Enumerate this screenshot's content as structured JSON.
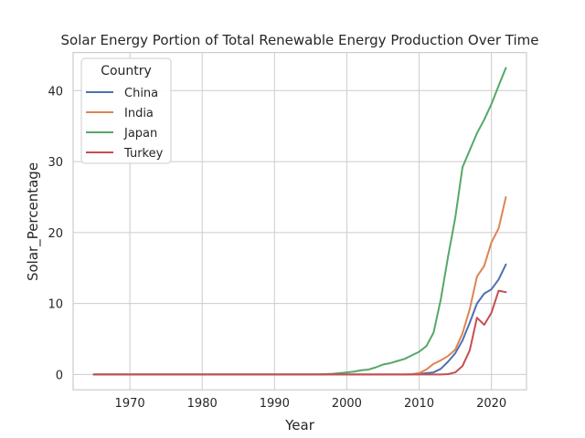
{
  "chart_data": {
    "type": "line",
    "title": "Solar Energy Portion of Total Renewable Energy Production Over Time",
    "xlabel": "Year",
    "ylabel": "Solar_Percentage",
    "xlim": [
      1962.15,
      2024.85
    ],
    "ylim": [
      -2.16,
      45.36
    ],
    "xticks": [
      1970,
      1980,
      1990,
      2000,
      2010,
      2020
    ],
    "yticks": [
      0,
      10,
      20,
      30,
      40
    ],
    "grid": true,
    "legend": {
      "title": "Country",
      "placement": "top-left"
    },
    "series": [
      {
        "name": "China",
        "color": "#4c72b0",
        "points": [
          [
            1965,
            0
          ],
          [
            1970,
            0
          ],
          [
            1980,
            0
          ],
          [
            1990,
            0
          ],
          [
            2000,
            0
          ],
          [
            2005,
            0
          ],
          [
            2008,
            0
          ],
          [
            2010,
            0.05
          ],
          [
            2011,
            0.2
          ],
          [
            2012,
            0.3
          ],
          [
            2013,
            0.8
          ],
          [
            2014,
            1.8
          ],
          [
            2015,
            3.0
          ],
          [
            2016,
            4.8
          ],
          [
            2017,
            7.3
          ],
          [
            2018,
            10.0
          ],
          [
            2019,
            11.4
          ],
          [
            2020,
            12.0
          ],
          [
            2021,
            13.4
          ],
          [
            2022,
            15.5
          ]
        ]
      },
      {
        "name": "India",
        "color": "#dd8452",
        "points": [
          [
            1965,
            0
          ],
          [
            1970,
            0
          ],
          [
            1980,
            0
          ],
          [
            1990,
            0
          ],
          [
            2000,
            0
          ],
          [
            2005,
            0
          ],
          [
            2008,
            0
          ],
          [
            2009,
            0.05
          ],
          [
            2010,
            0.2
          ],
          [
            2011,
            0.7
          ],
          [
            2012,
            1.5
          ],
          [
            2013,
            2.0
          ],
          [
            2014,
            2.6
          ],
          [
            2015,
            3.5
          ],
          [
            2016,
            5.8
          ],
          [
            2017,
            9.2
          ],
          [
            2018,
            13.8
          ],
          [
            2019,
            15.3
          ],
          [
            2020,
            18.6
          ],
          [
            2021,
            20.6
          ],
          [
            2022,
            25.0
          ]
        ]
      },
      {
        "name": "Japan",
        "color": "#55a868",
        "points": [
          [
            1965,
            0
          ],
          [
            1970,
            0
          ],
          [
            1980,
            0
          ],
          [
            1990,
            0
          ],
          [
            1995,
            0
          ],
          [
            1996,
            0.02
          ],
          [
            1997,
            0.05
          ],
          [
            1998,
            0.1
          ],
          [
            1999,
            0.2
          ],
          [
            2000,
            0.3
          ],
          [
            2001,
            0.4
          ],
          [
            2002,
            0.6
          ],
          [
            2003,
            0.7
          ],
          [
            2004,
            1.0
          ],
          [
            2005,
            1.4
          ],
          [
            2006,
            1.6
          ],
          [
            2007,
            1.9
          ],
          [
            2008,
            2.2
          ],
          [
            2009,
            2.7
          ],
          [
            2010,
            3.2
          ],
          [
            2011,
            4.0
          ],
          [
            2012,
            5.9
          ],
          [
            2013,
            10.6
          ],
          [
            2014,
            16.6
          ],
          [
            2015,
            22.1
          ],
          [
            2016,
            29.2
          ],
          [
            2017,
            31.6
          ],
          [
            2018,
            34.0
          ],
          [
            2019,
            35.9
          ],
          [
            2020,
            38.1
          ],
          [
            2021,
            40.7
          ],
          [
            2022,
            43.2
          ]
        ]
      },
      {
        "name": "Turkey",
        "color": "#c44e52",
        "points": [
          [
            1965,
            0
          ],
          [
            1970,
            0
          ],
          [
            1980,
            0
          ],
          [
            1990,
            0
          ],
          [
            2000,
            0
          ],
          [
            2010,
            0
          ],
          [
            2011,
            0
          ],
          [
            2012,
            0
          ],
          [
            2013,
            0
          ],
          [
            2014,
            0.05
          ],
          [
            2015,
            0.3
          ],
          [
            2016,
            1.2
          ],
          [
            2017,
            3.4
          ],
          [
            2018,
            8.0
          ],
          [
            2019,
            7.0
          ],
          [
            2020,
            8.7
          ],
          [
            2021,
            11.8
          ],
          [
            2022,
            11.6
          ]
        ]
      }
    ]
  }
}
